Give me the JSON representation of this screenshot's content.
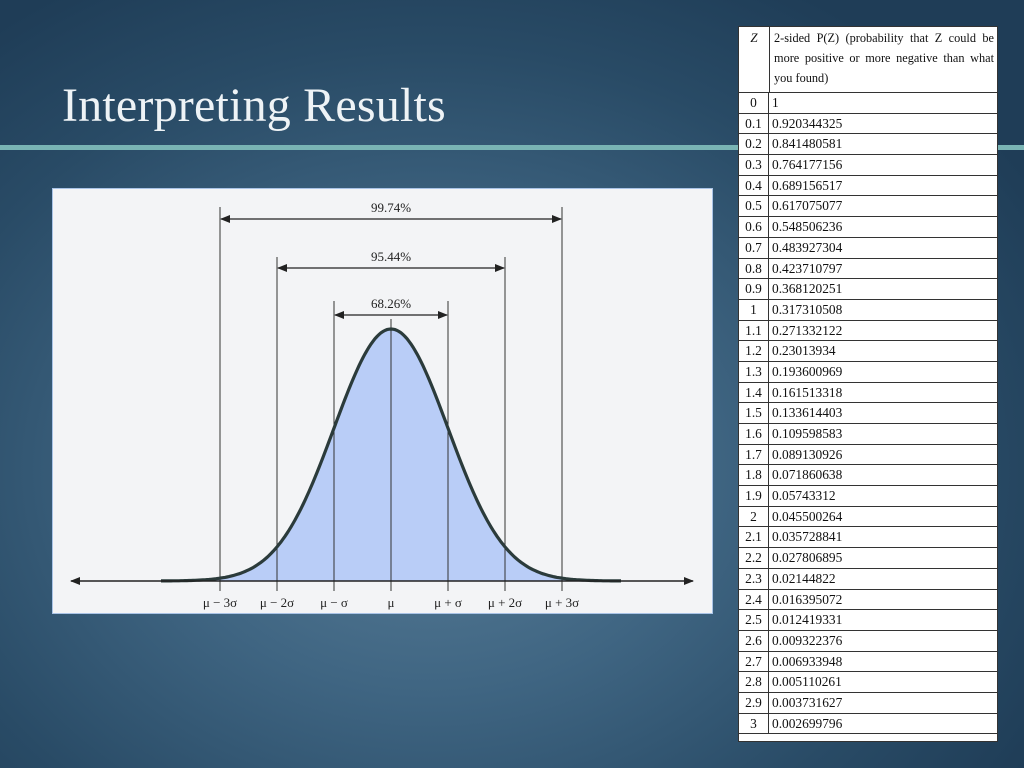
{
  "slide": {
    "title": "Interpreting Results"
  },
  "figure": {
    "bracket_labels": [
      "99.74%",
      "95.44%",
      "68.26%"
    ],
    "axis_labels": [
      "μ − 3σ",
      "μ − 2σ",
      "μ − σ",
      "μ",
      "μ + σ",
      "μ + 2σ",
      "μ + 3σ"
    ],
    "curve_fill": "#b9cdf7",
    "curve_stroke": "#2b3b3b"
  },
  "table": {
    "header_z": "Z",
    "header_p": "2-sided P(Z) (probability that Z could be more positive or more negative than what you found)",
    "rows": [
      {
        "z": "0",
        "p": "1"
      },
      {
        "z": "0.1",
        "p": "0.920344325"
      },
      {
        "z": "0.2",
        "p": "0.841480581"
      },
      {
        "z": "0.3",
        "p": "0.764177156"
      },
      {
        "z": "0.4",
        "p": "0.689156517"
      },
      {
        "z": "0.5",
        "p": "0.617075077"
      },
      {
        "z": "0.6",
        "p": "0.548506236"
      },
      {
        "z": "0.7",
        "p": "0.483927304"
      },
      {
        "z": "0.8",
        "p": "0.423710797"
      },
      {
        "z": "0.9",
        "p": "0.368120251"
      },
      {
        "z": "1",
        "p": "0.317310508"
      },
      {
        "z": "1.1",
        "p": "0.271332122"
      },
      {
        "z": "1.2",
        "p": "0.23013934"
      },
      {
        "z": "1.3",
        "p": "0.193600969"
      },
      {
        "z": "1.4",
        "p": "0.161513318"
      },
      {
        "z": "1.5",
        "p": "0.133614403"
      },
      {
        "z": "1.6",
        "p": "0.109598583"
      },
      {
        "z": "1.7",
        "p": "0.089130926"
      },
      {
        "z": "1.8",
        "p": "0.071860638"
      },
      {
        "z": "1.9",
        "p": "0.05743312"
      },
      {
        "z": "2",
        "p": "0.045500264"
      },
      {
        "z": "2.1",
        "p": "0.035728841"
      },
      {
        "z": "2.2",
        "p": "0.027806895"
      },
      {
        "z": "2.3",
        "p": "0.02144822"
      },
      {
        "z": "2.4",
        "p": "0.016395072"
      },
      {
        "z": "2.5",
        "p": "0.012419331"
      },
      {
        "z": "2.6",
        "p": "0.009322376"
      },
      {
        "z": "2.7",
        "p": "0.006933948"
      },
      {
        "z": "2.8",
        "p": "0.005110261"
      },
      {
        "z": "2.9",
        "p": "0.003731627"
      },
      {
        "z": "3",
        "p": "0.002699796"
      }
    ]
  }
}
